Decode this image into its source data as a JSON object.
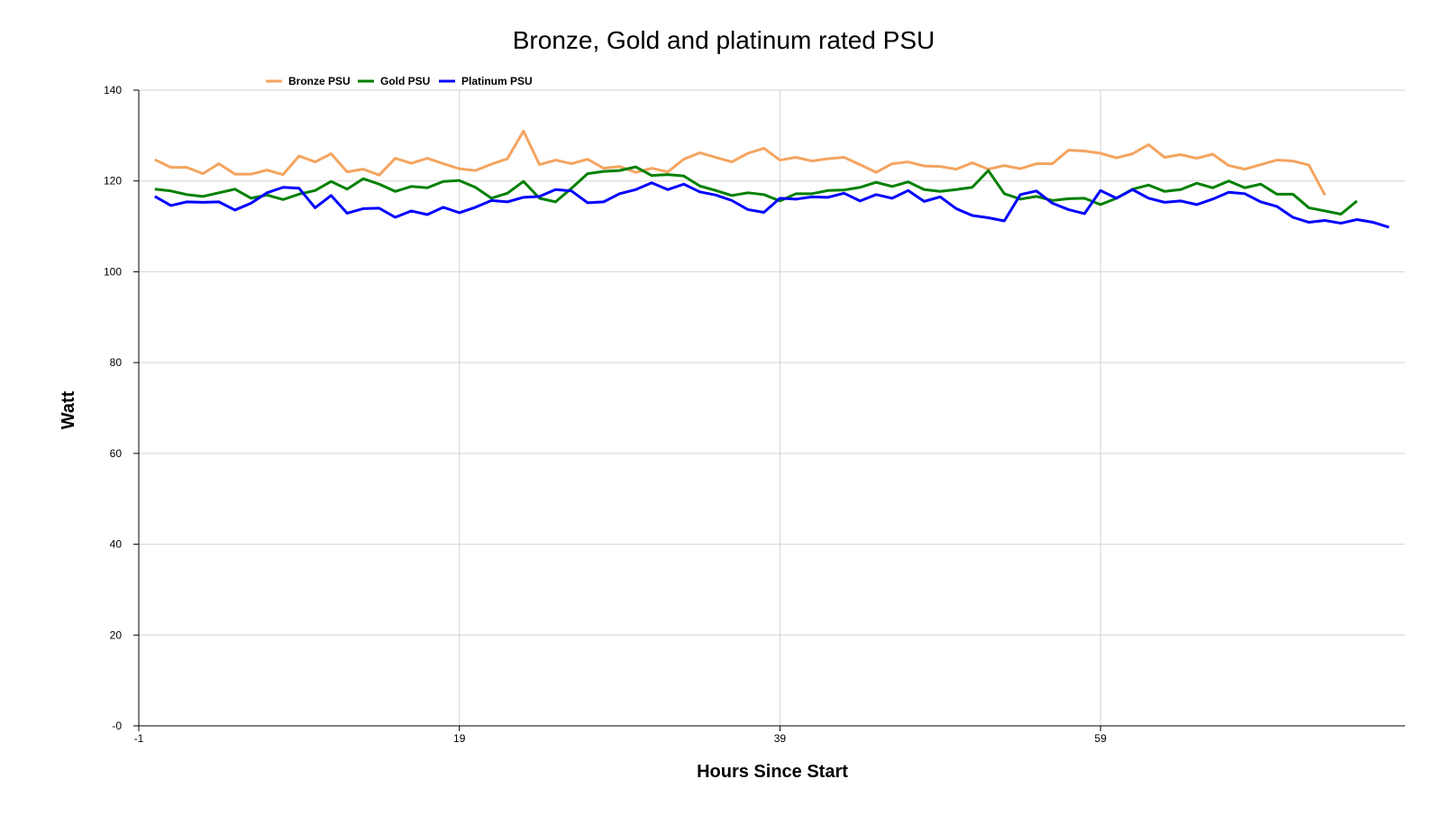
{
  "chart_data": {
    "type": "line",
    "title": "Bronze, Gold and platinum rated PSU",
    "xlabel": "Hours Since Start",
    "ylabel": "Watt",
    "xlim": [
      -1,
      78
    ],
    "ylim": [
      0,
      140
    ],
    "x_ticks": [
      -1,
      19,
      39,
      59
    ],
    "x_tick_labels": [
      "-1",
      "19",
      "39",
      "59"
    ],
    "y_ticks": [
      0,
      20,
      40,
      60,
      80,
      100,
      120,
      140
    ],
    "y_tick_labels": [
      "-0",
      "20",
      "40",
      "60",
      "80",
      "100",
      "120",
      "140"
    ],
    "grid": true,
    "legend": "top-left",
    "series": [
      {
        "name": "Bronze PSU",
        "color": "#f4a460",
        "values": [
          124.7,
          123.0,
          123.0,
          121.6,
          123.8,
          121.5,
          121.5,
          122.4,
          121.4,
          125.5,
          124.2,
          126.0,
          122.0,
          122.6,
          121.3,
          125.0,
          123.9,
          125.0,
          123.8,
          122.7,
          122.3,
          123.7,
          124.9,
          131.0,
          123.6,
          124.6,
          123.8,
          124.8,
          122.8,
          123.2,
          121.9,
          122.8,
          122.0,
          124.8,
          126.2,
          125.2,
          124.2,
          126.1,
          127.2,
          124.6,
          125.2,
          124.4,
          124.9,
          125.2,
          123.6,
          121.9,
          123.8,
          124.2,
          123.3,
          123.2,
          122.6,
          124.0,
          122.6,
          123.4,
          122.7,
          123.8,
          123.8,
          126.8,
          126.6,
          126.1,
          125.1,
          126.0,
          128.0,
          125.2,
          125.8,
          125.0,
          125.9,
          123.4,
          122.6,
          123.6,
          124.6,
          124.4,
          123.5,
          116.9
        ]
      },
      {
        "name": "Gold PSU",
        "color": "#008000",
        "values": [
          118.2,
          117.8,
          117.0,
          116.6,
          117.4,
          118.2,
          116.2,
          116.9,
          115.9,
          117.1,
          117.9,
          119.9,
          118.2,
          120.5,
          119.3,
          117.7,
          118.8,
          118.5,
          119.9,
          120.1,
          118.6,
          116.2,
          117.3,
          119.9,
          116.2,
          115.4,
          118.4,
          121.6,
          122.1,
          122.3,
          123.1,
          121.2,
          121.4,
          121.1,
          118.9,
          117.9,
          116.8,
          117.4,
          117.0,
          115.6,
          117.2,
          117.2,
          117.9,
          118.0,
          118.6,
          119.7,
          118.8,
          119.8,
          118.1,
          117.7,
          118.1,
          118.6,
          122.3,
          117.2,
          116.0,
          116.6,
          115.7,
          116.1,
          116.2,
          114.8,
          116.2,
          118.2,
          119.1,
          117.7,
          118.1,
          119.5,
          118.5,
          120.0,
          118.5,
          119.3,
          117.1,
          117.1,
          114.1,
          113.4,
          112.7,
          115.6
        ]
      },
      {
        "name": "Platinum PSU",
        "color": "#0000ff",
        "values": [
          116.6,
          114.6,
          115.4,
          115.3,
          115.4,
          113.6,
          115.1,
          117.4,
          118.6,
          118.4,
          114.1,
          116.8,
          112.9,
          113.9,
          114.0,
          112.0,
          113.4,
          112.6,
          114.2,
          113.0,
          114.2,
          115.7,
          115.4,
          116.4,
          116.6,
          118.1,
          117.8,
          115.2,
          115.4,
          117.2,
          118.1,
          119.6,
          118.1,
          119.3,
          117.6,
          116.9,
          115.7,
          113.7,
          113.1,
          116.2,
          116.0,
          116.5,
          116.4,
          117.3,
          115.6,
          117.0,
          116.2,
          117.9,
          115.5,
          116.5,
          113.9,
          112.4,
          111.9,
          111.2,
          117.0,
          117.8,
          115.1,
          113.7,
          112.8,
          117.9,
          116.2,
          118.1,
          116.2,
          115.3,
          115.6,
          114.8,
          116.0,
          117.5,
          117.2,
          115.4,
          114.4,
          112.0,
          110.9,
          111.3,
          110.7,
          111.5,
          110.9,
          109.8
        ]
      }
    ]
  }
}
